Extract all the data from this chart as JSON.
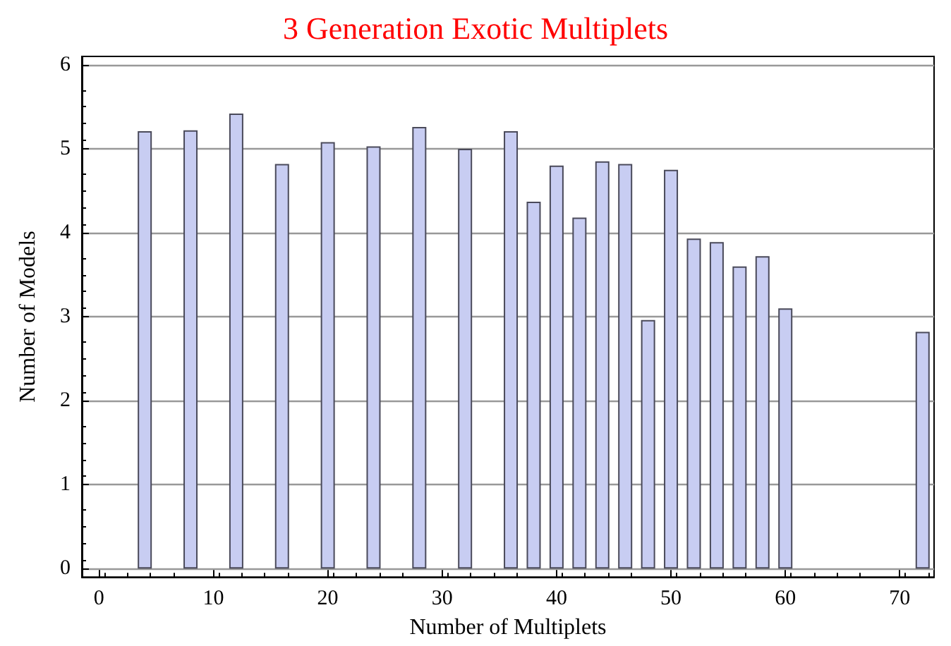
{
  "chart_data": {
    "type": "bar",
    "title": "3 Generation Exotic Multiplets",
    "xlabel": "Number of Multiplets",
    "ylabel": "Number of Models",
    "x": [
      4,
      8,
      12,
      16,
      20,
      24,
      28,
      32,
      36,
      38,
      40,
      42,
      44,
      46,
      48,
      50,
      52,
      54,
      56,
      58,
      60,
      72
    ],
    "values": [
      5.21,
      5.22,
      5.42,
      4.82,
      5.08,
      5.03,
      5.26,
      5.0,
      5.21,
      4.37,
      4.8,
      4.18,
      4.85,
      4.82,
      2.96,
      4.75,
      3.93,
      3.89,
      3.6,
      3.72,
      3.1,
      2.82
    ],
    "color": "#c8cdf2",
    "xlim": [
      -1.5,
      73
    ],
    "xticks": [
      0,
      10,
      20,
      30,
      40,
      50,
      60,
      70
    ],
    "ylim": [
      -0.1,
      6.1
    ],
    "yticks": [
      0,
      1,
      2,
      3,
      4,
      5,
      6
    ],
    "grid": "y"
  }
}
